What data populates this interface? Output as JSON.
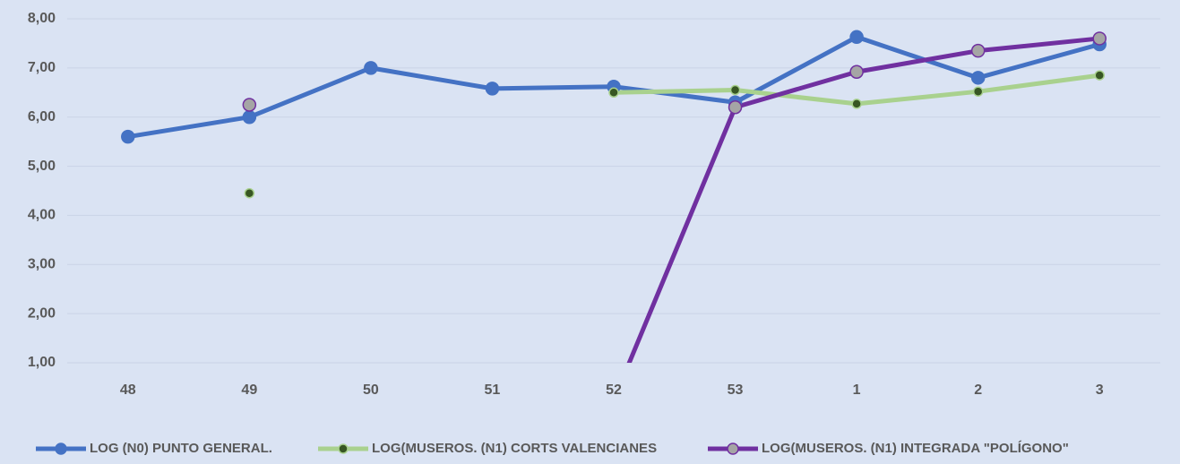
{
  "chart_data": {
    "type": "line",
    "categories": [
      "48",
      "49",
      "50",
      "51",
      "52",
      "53",
      "1",
      "2",
      "3"
    ],
    "series": [
      {
        "name": "LOG (N0) PUNTO GENERAL.",
        "color": "#4472c4",
        "marker_color": "#4472c4",
        "values": [
          5.6,
          6.0,
          7.0,
          6.58,
          6.62,
          6.3,
          7.63,
          6.8,
          7.48
        ]
      },
      {
        "name": "LOG(MUSEROS. (N1) CORTS VALENCIANES",
        "color": "#a9d18e",
        "marker_color": "#375623",
        "values": [
          null,
          4.45,
          null,
          null,
          6.5,
          6.55,
          6.27,
          6.52,
          6.85
        ]
      },
      {
        "name": "LOG(MUSEROS. (N1) INTEGRADA \"POLÍGONO\"",
        "color": "#7030a0",
        "marker_color": "#a5a5a5",
        "values": [
          null,
          6.25,
          null,
          null,
          0.24,
          6.2,
          6.92,
          7.35,
          7.6
        ]
      }
    ],
    "ylim": [
      1,
      8
    ],
    "yticks": [
      {
        "value": 1,
        "label": "1,00"
      },
      {
        "value": 2,
        "label": "2,00"
      },
      {
        "value": 3,
        "label": "3,00"
      },
      {
        "value": 4,
        "label": "4,00"
      },
      {
        "value": 5,
        "label": "5,00"
      },
      {
        "value": 6,
        "label": "6,00"
      },
      {
        "value": 7,
        "label": "7,00"
      },
      {
        "value": 8,
        "label": "8,00"
      }
    ],
    "grid": true,
    "legend": "bottom"
  }
}
